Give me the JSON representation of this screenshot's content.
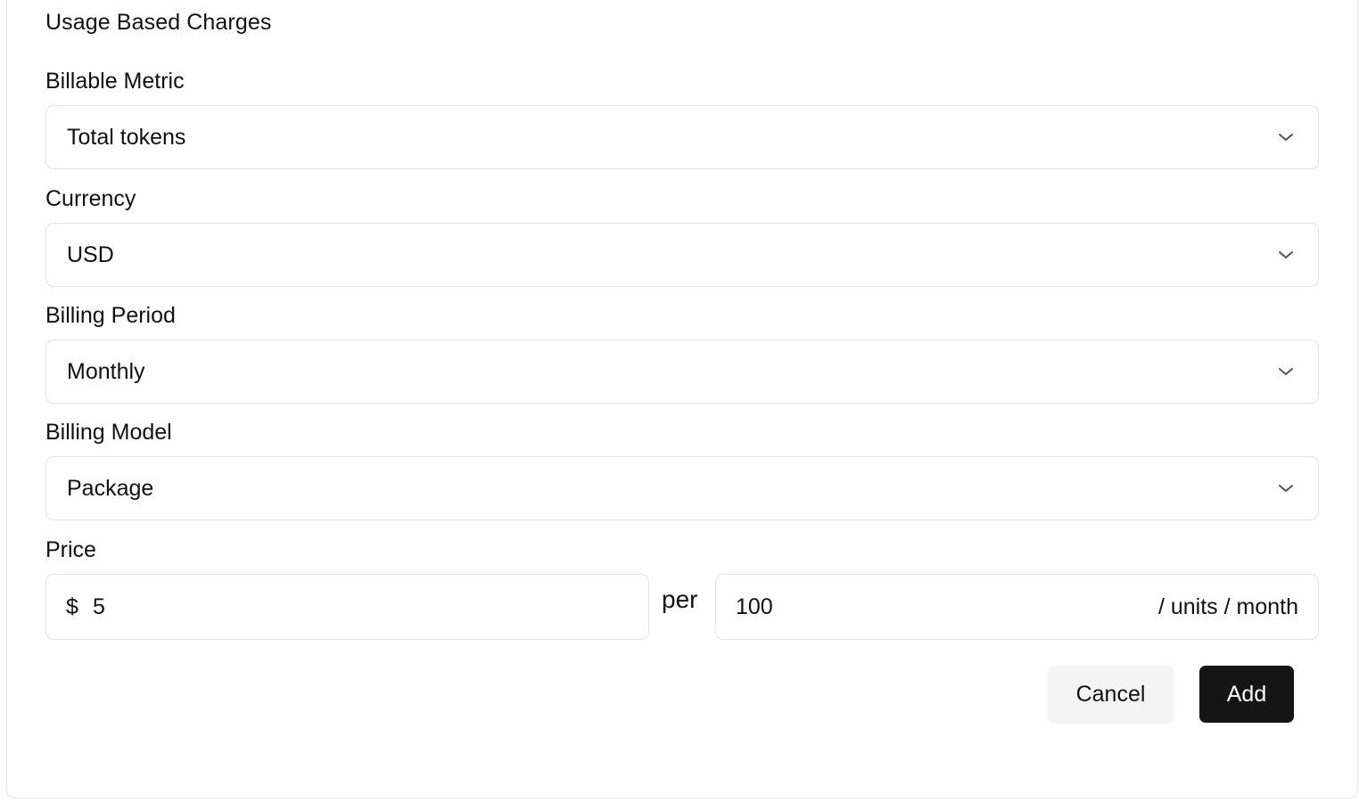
{
  "section": {
    "title": "Usage Based Charges"
  },
  "billable_metric": {
    "label": "Billable Metric",
    "value": "Total tokens"
  },
  "currency": {
    "label": "Currency",
    "value": "USD"
  },
  "billing_period": {
    "label": "Billing Period",
    "value": "Monthly"
  },
  "billing_model": {
    "label": "Billing Model",
    "value": "Package"
  },
  "price": {
    "label": "Price",
    "currency_symbol": "$",
    "amount": "5",
    "per_label": "per",
    "units": "100",
    "units_suffix": "/ units / month"
  },
  "actions": {
    "cancel_label": "Cancel",
    "add_label": "Add"
  },
  "icons": {
    "dropdown": "chevron-down-icon"
  },
  "colors": {
    "primary_button": "#151515",
    "secondary_button": "#f4f4f4",
    "border": "#e3e3e3"
  }
}
